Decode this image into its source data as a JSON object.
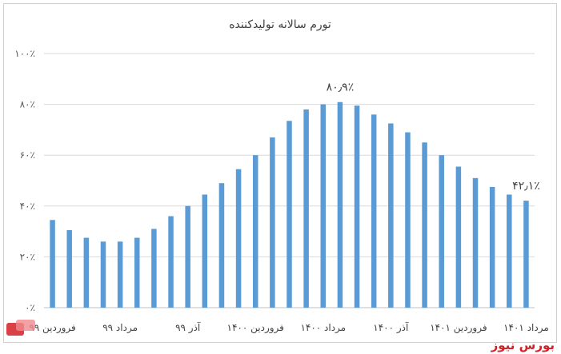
{
  "chart_data": {
    "type": "bar",
    "title": "تورم سالانه تولیدکننده",
    "y_ticks": [
      "۰٪",
      "۲۰٪",
      "۴۰٪",
      "۶۰٪",
      "۸۰٪",
      "۱۰۰٪"
    ],
    "ylim": [
      0,
      100
    ],
    "grid": true,
    "bar_color": "#5b9bd5",
    "values": [
      34.5,
      30.5,
      27.5,
      26,
      26,
      27.5,
      31,
      36,
      40,
      44.5,
      49,
      54.5,
      60,
      67,
      73.5,
      78,
      80,
      80.9,
      79.5,
      76,
      72.5,
      69,
      65,
      60,
      55.5,
      51,
      47.5,
      44.5,
      42.1
    ],
    "x_labels": [
      {
        "index": 0,
        "label": "فروردین ۹۹"
      },
      {
        "index": 4,
        "label": "مرداد ۹۹"
      },
      {
        "index": 8,
        "label": "آذر ۹۹"
      },
      {
        "index": 12,
        "label": "فروردین ۱۴۰۰"
      },
      {
        "index": 16,
        "label": "مرداد ۱۴۰۰"
      },
      {
        "index": 20,
        "label": "آذر ۱۴۰۰"
      },
      {
        "index": 24,
        "label": "فروردین ۱۴۰۱"
      },
      {
        "index": 28,
        "label": "مرداد ۱۴۰۱"
      }
    ],
    "annotations": [
      {
        "index": 17,
        "text": "۸۰٫۹٪"
      },
      {
        "index": 28,
        "text": "۴۲٫۱٪"
      }
    ]
  },
  "watermark": {
    "text": "بورس نیوز",
    "color": "#d42027"
  }
}
